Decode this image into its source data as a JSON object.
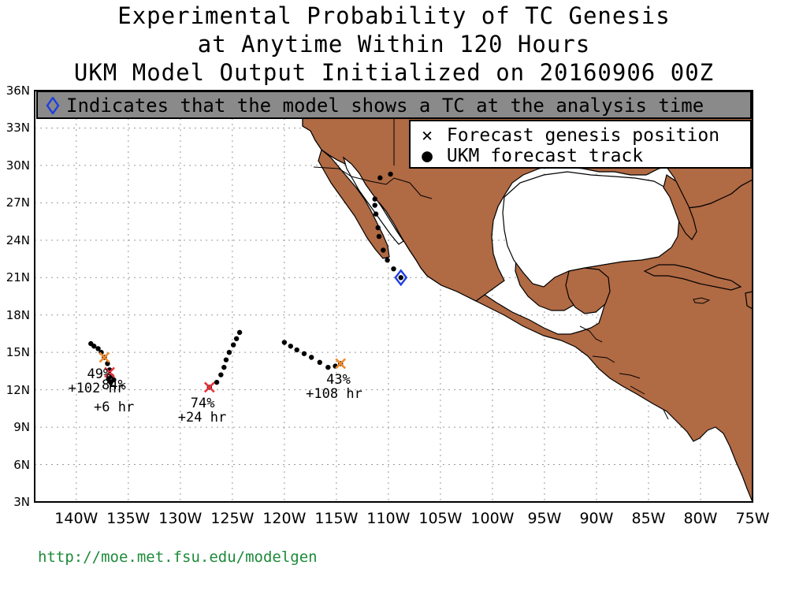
{
  "title": {
    "line1": "Experimental Probability of TC Genesis",
    "line2": "at Anytime Within 120 Hours",
    "line3": "UKM Model Output Initialized on 20160906 00Z"
  },
  "info_bar": {
    "text": "Indicates that the model shows a TC at the analysis time",
    "symbol_color": "#1f3fe0"
  },
  "legend": {
    "genesis_label": "Forecast genesis position",
    "track_label": "UKM forecast track"
  },
  "axes": {
    "lat_labels": [
      "36N",
      "33N",
      "30N",
      "27N",
      "24N",
      "21N",
      "18N",
      "15N",
      "12N",
      "9N",
      "6N",
      "3N"
    ],
    "lon_labels": [
      "140W",
      "135W",
      "130W",
      "125W",
      "120W",
      "115W",
      "110W",
      "105W",
      "100W",
      "95W",
      "90W",
      "85W",
      "80W",
      "75W"
    ]
  },
  "colors": {
    "land": "#b06a44",
    "grid": "#9a9a9a",
    "orange_x": "#f08a2a",
    "red_x": "#e8333a",
    "blue_diamond": "#1f3fe0",
    "footer": "#1d8a3a"
  },
  "map_data": {
    "lon_range": [
      -144,
      -75
    ],
    "lat_range": [
      3,
      36
    ],
    "analysis_tc": {
      "lon": -108.8,
      "lat": 21.0
    },
    "genesis": [
      {
        "id": "g1",
        "lon": -137.3,
        "lat": 14.6,
        "color": "orange",
        "prob": "49%",
        "lead": "+102 hr"
      },
      {
        "id": "g2",
        "lon": -136.8,
        "lat": 13.4,
        "color": "red",
        "prob": "84%",
        "lead": "+6 hr"
      },
      {
        "id": "g3",
        "lon": -127.2,
        "lat": 12.2,
        "color": "red",
        "prob": "74%",
        "lead": "+24 hr"
      },
      {
        "id": "g4",
        "lon": -114.6,
        "lat": 14.1,
        "color": "orange",
        "prob": "43%",
        "lead": "+108 hr"
      }
    ],
    "tracks": [
      [
        [
          -138.6,
          15.7
        ],
        [
          -138.3,
          15.5
        ],
        [
          -137.9,
          15.3
        ],
        [
          -137.6,
          15.0
        ],
        [
          -137.3,
          14.6
        ],
        [
          -137.0,
          14.1
        ],
        [
          -136.8,
          13.6
        ],
        [
          -136.6,
          13.1
        ],
        [
          -136.4,
          12.8
        ],
        [
          -136.7,
          12.6
        ],
        [
          -136.9,
          12.9
        ]
      ],
      [
        [
          -127.2,
          12.2
        ],
        [
          -126.5,
          12.6
        ],
        [
          -126.1,
          13.2
        ],
        [
          -125.8,
          13.8
        ],
        [
          -125.6,
          14.4
        ],
        [
          -125.3,
          15.0
        ],
        [
          -124.9,
          15.6
        ],
        [
          -124.6,
          16.1
        ],
        [
          -124.3,
          16.6
        ]
      ],
      [
        [
          -120.0,
          15.8
        ],
        [
          -119.4,
          15.5
        ],
        [
          -118.8,
          15.2
        ],
        [
          -118.1,
          14.9
        ],
        [
          -117.4,
          14.6
        ],
        [
          -116.6,
          14.2
        ],
        [
          -115.8,
          13.8
        ],
        [
          -115.1,
          13.9
        ],
        [
          -114.6,
          14.1
        ]
      ],
      [
        [
          -108.8,
          21.0
        ],
        [
          -109.5,
          21.7
        ],
        [
          -110.1,
          22.4
        ],
        [
          -110.5,
          23.2
        ],
        [
          -110.9,
          24.3
        ],
        [
          -111.0,
          25.0
        ],
        [
          -111.2,
          26.1
        ],
        [
          -111.3,
          26.8
        ],
        [
          -111.3,
          27.3
        ],
        [
          -110.8,
          29.0
        ],
        [
          -109.8,
          29.3
        ]
      ]
    ]
  },
  "footer": {
    "url": "http://moe.met.fsu.edu/modelgen"
  }
}
